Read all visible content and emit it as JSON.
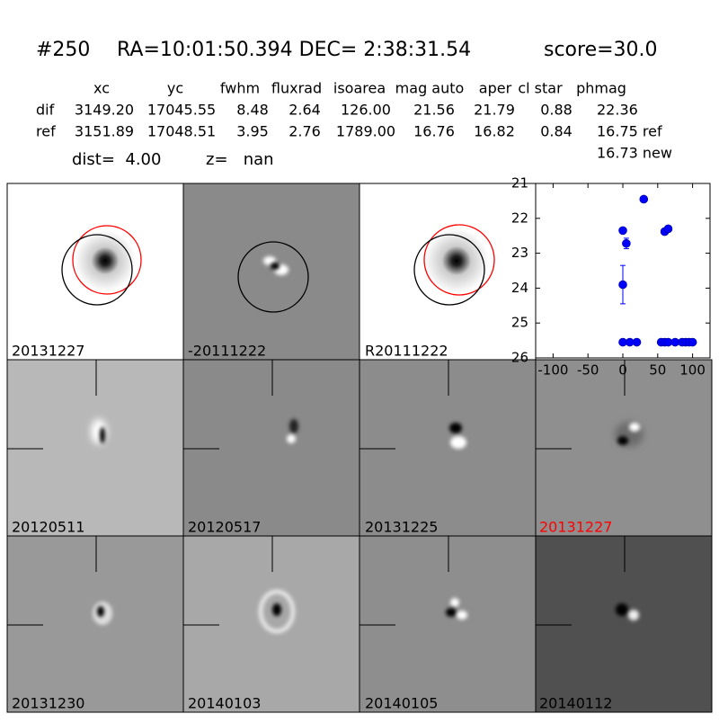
{
  "header": {
    "items": [
      "#250",
      "RA=10:01:50.394 DEC= 2:38:31.54",
      "score=30.0"
    ]
  },
  "table": {
    "columns": [
      "xc",
      "yc",
      "fwhm",
      "fluxrad",
      "isoarea",
      "mag auto",
      "aper",
      "cl star",
      "phmag"
    ],
    "rows": [
      [
        "dif",
        "3149.20",
        "17045.55",
        "8.48",
        "2.64",
        "126.00",
        "21.56",
        "21.79",
        "0.88",
        "22.36"
      ],
      [
        "ref",
        "3151.89",
        "17048.51",
        "3.95",
        "2.76",
        "1789.00",
        "16.76",
        "16.82",
        "0.84",
        "16.75 ref"
      ]
    ],
    "extra": "16.73 new"
  },
  "info": {
    "dist": "dist=  4.00",
    "z": "z=   nan"
  },
  "panels": [
    "20131227",
    "-20111222",
    "R20111222",
    "20120511",
    "20120517",
    "20131225",
    "20131227",
    "20131230",
    "20140103",
    "20140105",
    "20140112"
  ],
  "chart_data": {
    "type": "scatter",
    "color": "#0000ff",
    "x": [
      0,
      5,
      0,
      30,
      60,
      65,
      0,
      10,
      20,
      55,
      60,
      65,
      75,
      85,
      90,
      95,
      100
    ],
    "values": [
      22.35,
      22.72,
      23.9,
      21.45,
      22.38,
      22.3,
      25.55,
      25.55,
      25.55,
      25.55,
      25.55,
      25.55,
      25.55,
      25.55,
      25.55,
      25.55,
      25.55
    ],
    "errors": [
      0.06,
      0.15,
      0.55,
      null,
      0.07,
      0.05,
      null,
      null,
      null,
      null,
      null,
      null,
      null,
      null,
      null,
      null,
      null
    ],
    "xlim": [
      -125,
      125
    ],
    "xticks": [
      -100,
      -50,
      0,
      50,
      100
    ],
    "ylim": [
      26,
      21
    ],
    "yticks": [
      21,
      22,
      23,
      24,
      25,
      26
    ]
  }
}
